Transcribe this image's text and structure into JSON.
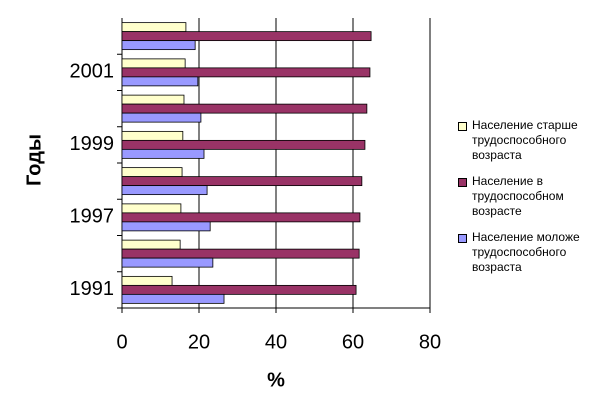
{
  "chart_data": {
    "type": "hbar",
    "categories": [
      "1991",
      null,
      "1997",
      null,
      "1999",
      null,
      "2001",
      null
    ],
    "series": [
      {
        "name": "Население старше трудоспособного возраста",
        "color": "#ffffcc",
        "values": [
          13.0,
          15.1,
          15.3,
          15.6,
          15.8,
          16.1,
          16.4,
          16.6
        ]
      },
      {
        "name": "Население в трудоспособном возрасте",
        "color": "#993366",
        "values": [
          60.8,
          61.6,
          61.8,
          62.3,
          63.1,
          63.6,
          64.4,
          64.7
        ]
      },
      {
        "name": "Население моложе трудоспособного возраста",
        "color": "#9999ff",
        "values": [
          26.5,
          23.6,
          22.9,
          22.1,
          21.3,
          20.5,
          19.7,
          19.0
        ]
      }
    ],
    "xlabel": "%",
    "ylabel": "Годы",
    "xlim": [
      0,
      80
    ],
    "xticks": [
      0,
      20,
      40,
      60,
      80
    ],
    "grid": true,
    "legend": "right"
  }
}
